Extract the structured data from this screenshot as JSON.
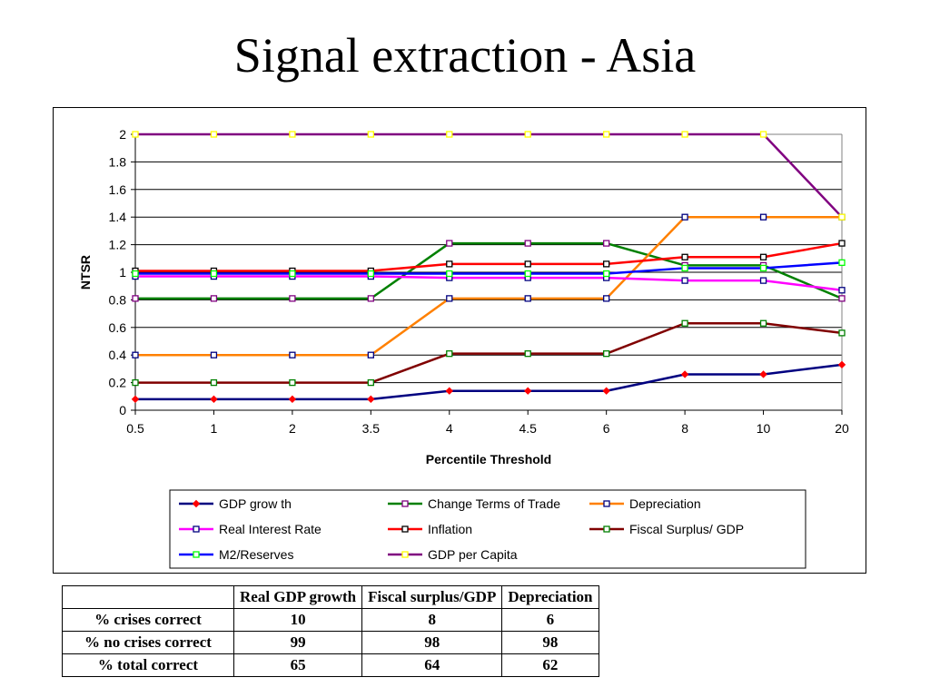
{
  "title": "Signal extraction - Asia",
  "chart_data": {
    "type": "line",
    "categories": [
      "0.5",
      "1",
      "2",
      "3.5",
      "4",
      "4.5",
      "6",
      "8",
      "10",
      "20"
    ],
    "xlabel": "Percentile Threshold",
    "ylabel": "NTSR",
    "ylim": [
      0,
      2
    ],
    "yticks": [
      "0",
      "0.2",
      "0.4",
      "0.6",
      "0.8",
      "1",
      "1.2",
      "1.4",
      "1.6",
      "1.8",
      "2"
    ],
    "grid": "horizontal",
    "legend_position": "bottom",
    "series": [
      {
        "name": "GDP grow th",
        "color": "#000080",
        "marker": "diamond",
        "marker_color": "#ff0000",
        "values": [
          0.08,
          0.08,
          0.08,
          0.08,
          0.14,
          0.14,
          0.14,
          0.26,
          0.26,
          0.33
        ]
      },
      {
        "name": "Change Terms of Trade",
        "color": "#008000",
        "marker": "square",
        "marker_color": "#800080",
        "values": [
          0.81,
          0.81,
          0.81,
          0.81,
          1.21,
          1.21,
          1.21,
          1.05,
          1.05,
          0.81
        ]
      },
      {
        "name": "Depreciation",
        "color": "#ff8000",
        "marker": "square",
        "marker_color": "#000080",
        "values": [
          0.4,
          0.4,
          0.4,
          0.4,
          0.81,
          0.81,
          0.81,
          1.4,
          1.4,
          1.4
        ]
      },
      {
        "name": "Real Interest Rate",
        "color": "#ff00ff",
        "marker": "square",
        "marker_color": "#000080",
        "values": [
          0.97,
          0.97,
          0.97,
          0.97,
          0.96,
          0.96,
          0.96,
          0.94,
          0.94,
          0.87
        ]
      },
      {
        "name": "Inflation",
        "color": "#ff0000",
        "marker": "square",
        "marker_color": "#000000",
        "values": [
          1.01,
          1.01,
          1.01,
          1.01,
          1.06,
          1.06,
          1.06,
          1.11,
          1.11,
          1.21
        ]
      },
      {
        "name": "Fiscal Surplus/ GDP",
        "color": "#800000",
        "marker": "square",
        "marker_color": "#008000",
        "values": [
          0.2,
          0.2,
          0.2,
          0.2,
          0.41,
          0.41,
          0.41,
          0.63,
          0.63,
          0.56
        ]
      },
      {
        "name": "M2/Reserves",
        "color": "#0000ff",
        "marker": "square",
        "marker_color": "#00ff00",
        "values": [
          0.99,
          0.99,
          0.99,
          0.99,
          0.99,
          0.99,
          0.99,
          1.03,
          1.03,
          1.07
        ]
      },
      {
        "name": "GDP per Capita",
        "color": "#800080",
        "marker": "square",
        "marker_color": "#ffff00",
        "values": [
          2,
          2,
          2,
          2,
          2,
          2,
          2,
          2,
          2,
          1.4
        ]
      }
    ]
  },
  "table": {
    "headers": [
      "",
      "Real GDP growth",
      "Fiscal surplus/GDP",
      "Depreciation"
    ],
    "rows": [
      {
        "label": "% crises correct",
        "values": [
          "10",
          "8",
          "6"
        ]
      },
      {
        "label": "% no crises correct",
        "values": [
          "99",
          "98",
          "98"
        ]
      },
      {
        "label": "% total correct",
        "values": [
          "65",
          "64",
          "62"
        ]
      }
    ]
  }
}
